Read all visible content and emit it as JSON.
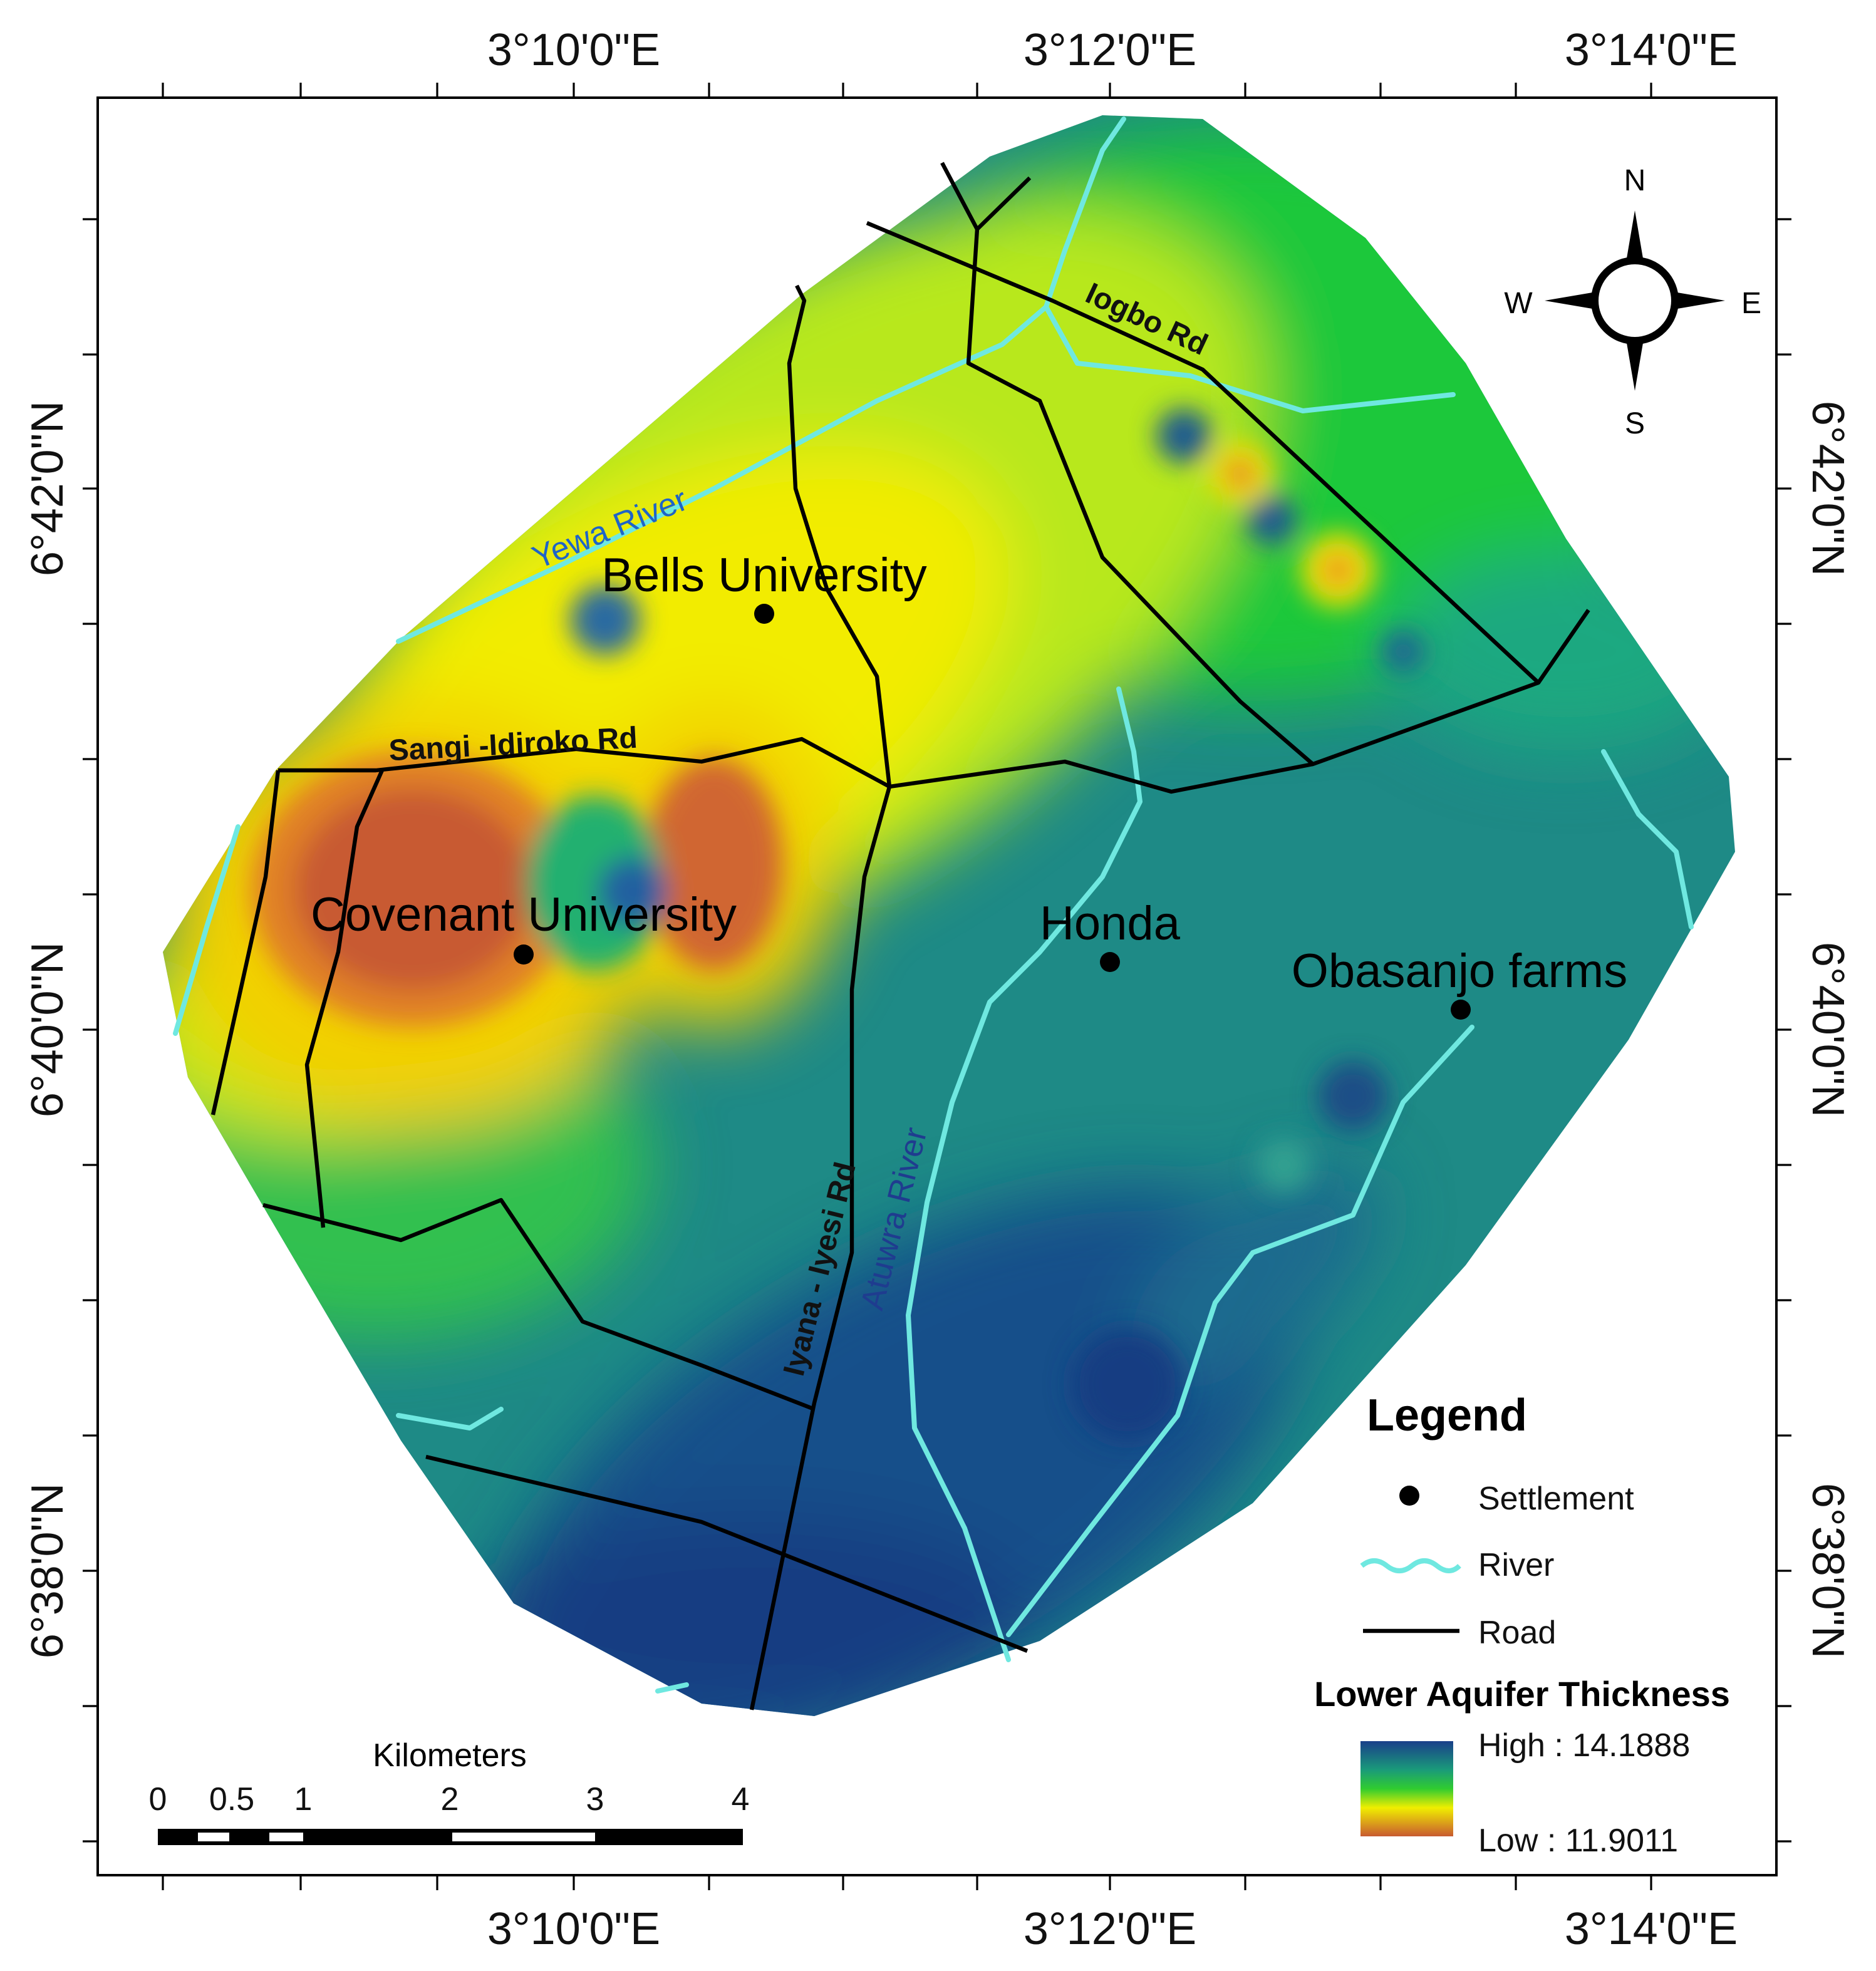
{
  "lon_labels": [
    "3°10'0\"E",
    "3°12'0\"E",
    "3°14'0\"E"
  ],
  "lat_labels": [
    "6°42'0\"N",
    "6°40'0\"N",
    "6°38'0\"N"
  ],
  "places": [
    "Bells University",
    "Covenant University",
    "Honda",
    "Obasanjo farms"
  ],
  "roads": [
    "Iogbo Rd",
    "Sangi -Idiroko Rd",
    "Iyana - Iyesi Rd"
  ],
  "rivers": [
    "Yewa River",
    "Atuwra River"
  ],
  "compass": {
    "n": "N",
    "e": "E",
    "s": "S",
    "w": "W"
  },
  "legend": {
    "title": "Legend",
    "settlement": "Settlement",
    "river": "River",
    "road": "Road",
    "ramp_title": "Lower Aquifer Thickness",
    "high": "High : 14.1888",
    "low": "Low : 11.9011"
  },
  "scale_bar": {
    "unit": "Kilometers",
    "labels": [
      "0",
      "0.5",
      "1",
      "2",
      "3",
      "4"
    ]
  }
}
